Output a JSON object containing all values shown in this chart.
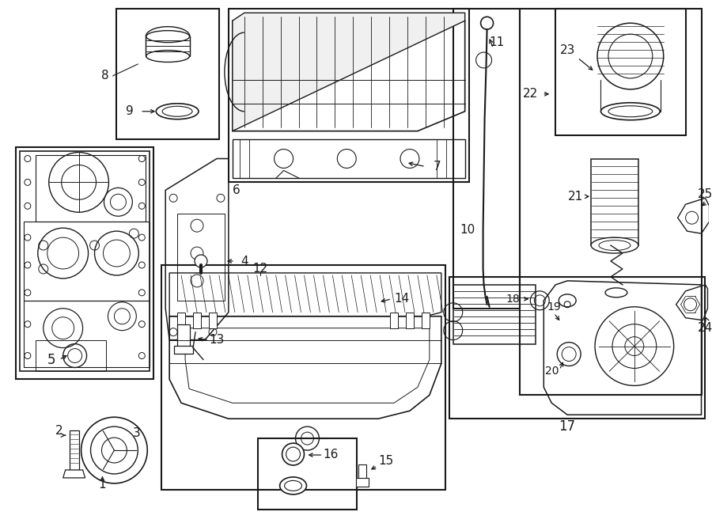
{
  "bg_color": "#ffffff",
  "line_color": "#1a1a1a",
  "fig_width": 9.0,
  "fig_height": 6.61,
  "dpi": 100,
  "boxes": {
    "parts_8_9": [
      148,
      10,
      278,
      175
    ],
    "valve_cover_67": [
      290,
      10,
      595,
      230
    ],
    "dipstick_10_11": [
      575,
      10,
      660,
      390
    ],
    "engine_block_5": [
      20,
      185,
      195,
      480
    ],
    "oil_filter_area": [
      660,
      10,
      890,
      500
    ],
    "filter_cap_23": [
      705,
      10,
      870,
      170
    ],
    "oil_pan_12to16": [
      205,
      335,
      565,
      620
    ],
    "sub_16": [
      327,
      555,
      453,
      645
    ],
    "oil_cooler_17to20": [
      570,
      350,
      895,
      530
    ]
  }
}
